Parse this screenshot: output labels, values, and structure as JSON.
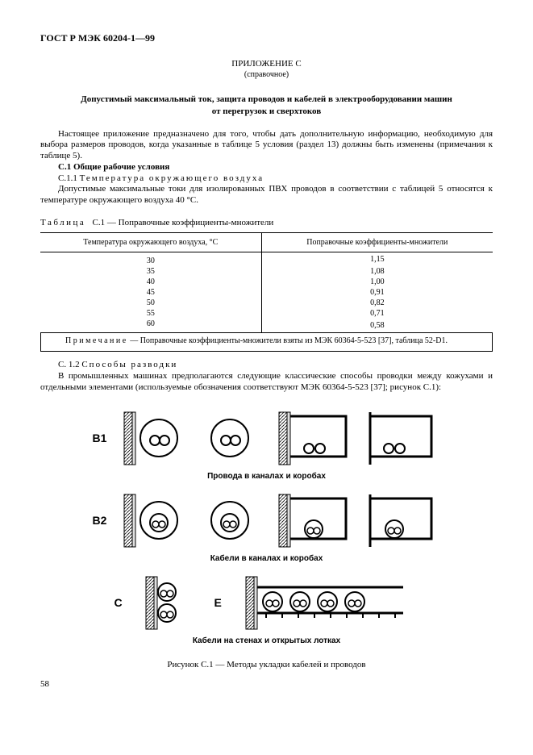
{
  "header": "ГОСТ Р МЭК 60204-1—99",
  "annex_title": "ПРИЛОЖЕНИЕ С",
  "annex_sub": "(справочное)",
  "main_title_l1": "Допустимый максимальный ток, защита проводов и кабелей в электрооборудовании машин",
  "main_title_l2": "от перегрузок и сверхтоков",
  "intro": "Настоящее приложение предназначено для того, чтобы дать дополнительную информацию, необходимую для выбора размеров проводов, когда указанные в таблице 5 условия (раздел 13) должны быть изменены (примечания к таблице 5).",
  "c1": {
    "num": "С.1",
    "title": "Общие рабочие условия"
  },
  "c11": {
    "num": "С.1.1",
    "title": "Температура  окружающего  воздуха",
    "text": "Допустимые максимальные токи для изолированных ПВХ проводов в соответствии с таблицей 5 относятся к температуре окружающего воздуха 40 °С."
  },
  "table": {
    "caption_prefix": "Таблица",
    "caption_rest": "С.1 — Поправочные коэффициенты-множители",
    "col1_header": "Температура окружающего воздуха, °С",
    "col2_header": "Поправочные коэффициенты-множители",
    "rows": [
      {
        "t": "30",
        "k": "1,15"
      },
      {
        "t": "35",
        "k": "1,08"
      },
      {
        "t": "40",
        "k": "1,00"
      },
      {
        "t": "45",
        "k": "0,91"
      },
      {
        "t": "50",
        "k": "0,82"
      },
      {
        "t": "55",
        "k": "0,71"
      },
      {
        "t": "60",
        "k": "0,58"
      }
    ],
    "note_prefix": "Примечание",
    "note_rest": " — Поправочные коэффициенты-множители взяты из МЭК 60364-5-523 [37], таблица 52-D1."
  },
  "c12": {
    "num": "С. 1.2",
    "title": "Способы  разводки",
    "text": "В промышленных машинах предполагаются следующие классические способы проводки между кожухами и отдельными элементами (используемые обозначения соответствуют МЭК 60364-5-523 [37]; рисунок С.1):"
  },
  "figure": {
    "row1_label": "В1",
    "row1_sub": "Провода в каналах и коробах",
    "row2_label": "В2",
    "row2_sub": "Кабели в каналах и коробах",
    "row3_label_c": "С",
    "row3_label_e": "Е",
    "row3_sub": "Кабели на стенах и открытых лотках",
    "caption": "Рисунок С.1 — Методы укладки кабелей и проводов",
    "colors": {
      "stroke": "#000000",
      "fill_hatch": "#999999",
      "fill_grey": "#e0e0e0"
    }
  },
  "page_num": "58"
}
